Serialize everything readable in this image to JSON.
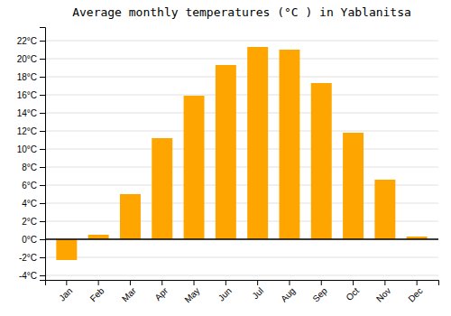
{
  "chart_data": {
    "type": "bar",
    "title": "Average monthly temperatures (°C ) in Yablanitsa",
    "categories": [
      "Jan",
      "Feb",
      "Mar",
      "Apr",
      "May",
      "Jun",
      "Jul",
      "Aug",
      "Sep",
      "Oct",
      "Nov",
      "Dec"
    ],
    "values": [
      -2.3,
      0.5,
      5.0,
      11.2,
      15.9,
      19.3,
      21.3,
      21.0,
      17.3,
      11.8,
      6.6,
      0.3
    ],
    "color": "#FFA500",
    "ylim": [
      -4.5,
      23.5
    ],
    "yticks": [
      {
        "value": -4,
        "label": "-4°C"
      },
      {
        "value": -2,
        "label": "-2°C"
      },
      {
        "value": 0,
        "label": "0°C"
      },
      {
        "value": 2,
        "label": "2°C"
      },
      {
        "value": 4,
        "label": "4°C"
      },
      {
        "value": 6,
        "label": "6°C"
      },
      {
        "value": 8,
        "label": "8°C"
      },
      {
        "value": 10,
        "label": "10°C"
      },
      {
        "value": 12,
        "label": "12°C"
      },
      {
        "value": 14,
        "label": "14°C"
      },
      {
        "value": 16,
        "label": "16°C"
      },
      {
        "value": 18,
        "label": "18°C"
      },
      {
        "value": 20,
        "label": "20°C"
      },
      {
        "value": 22,
        "label": "22°C"
      }
    ],
    "grid": true
  }
}
